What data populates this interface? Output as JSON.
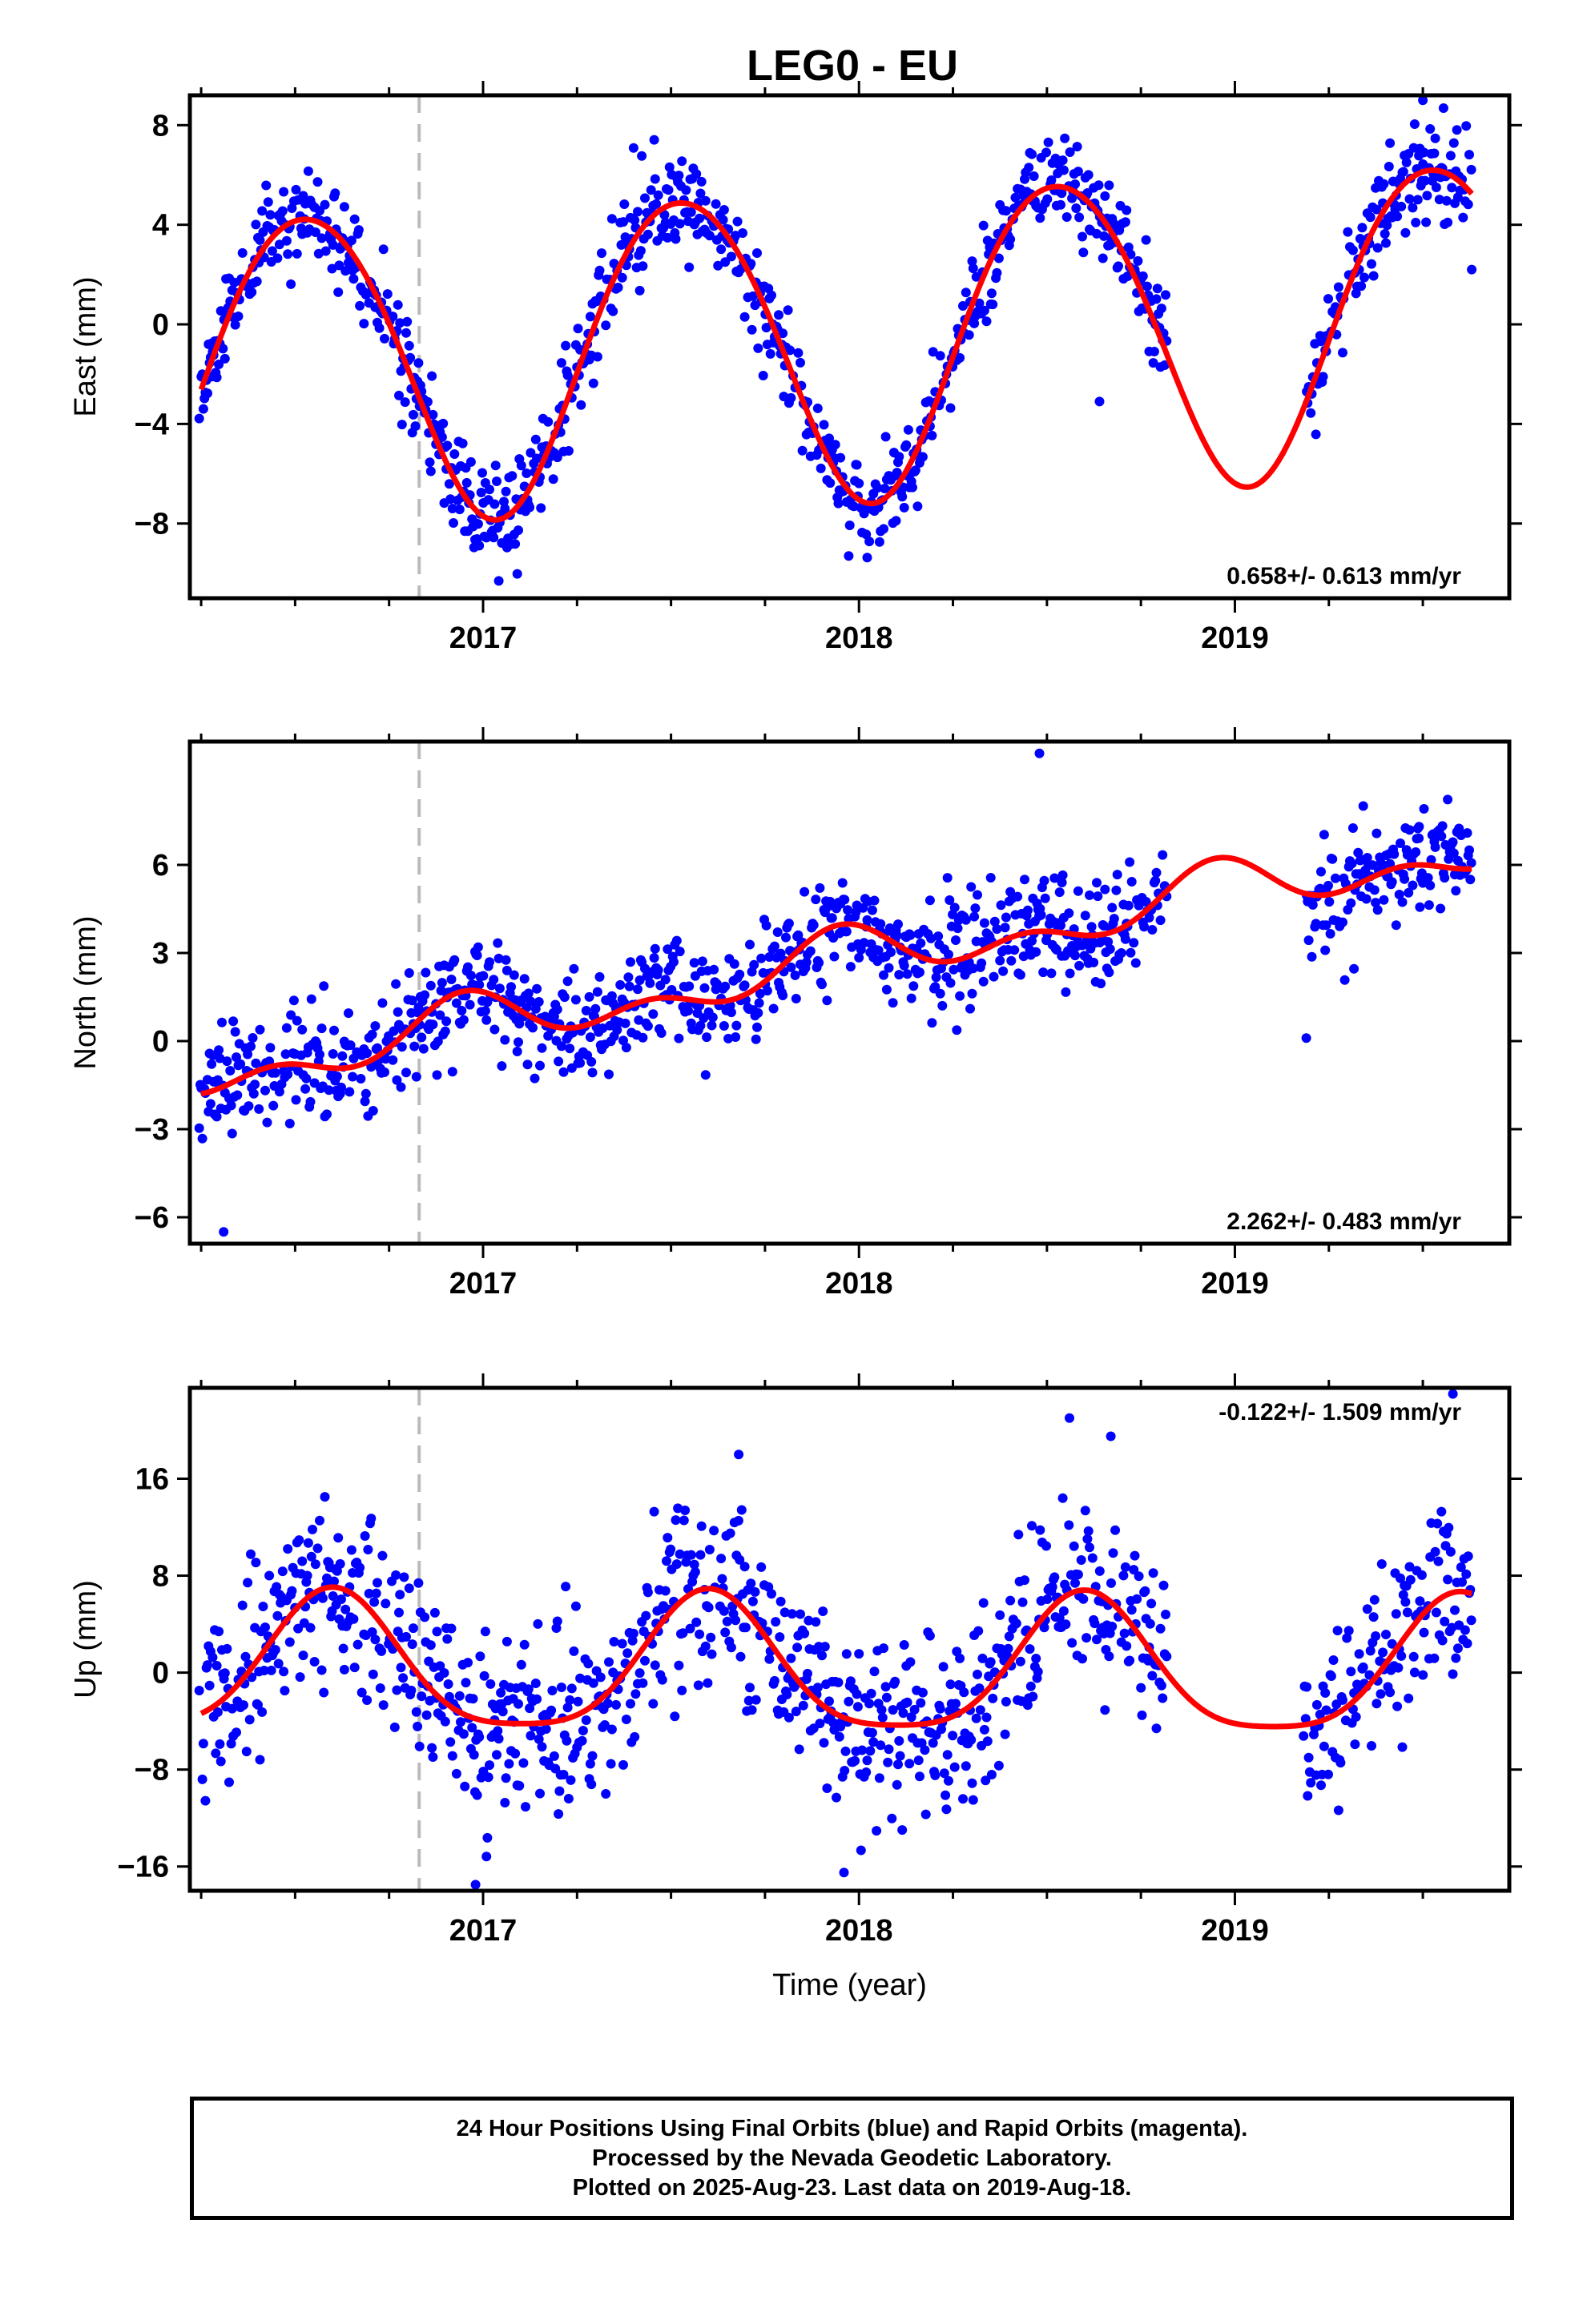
{
  "title": "LEG0 - EU",
  "colors": {
    "data": "#0000ff",
    "model": "#ff0000",
    "marker_line": "#bbbbbb"
  },
  "footer": {
    "line1": "24 Hour Positions Using Final Orbits (blue) and Rapid Orbits (magenta).",
    "line2": "Processed by the Nevada Geodetic Laboratory.",
    "line3": "Plotted on 2025-Aug-23. Last data on 2019-Aug-18."
  },
  "chart_data": [
    {
      "type": "scatter",
      "panel": "east",
      "ylabel": "East (mm)",
      "xlabel": "",
      "xlim": [
        2016.22,
        2019.73
      ],
      "ylim": [
        -11.0,
        9.2
      ],
      "xticks": [
        2017,
        2018,
        2019
      ],
      "yticks": [
        -8,
        -4,
        0,
        4,
        8
      ],
      "equipment_change": 2016.83,
      "rate_label": "0.658+/- 0.613 mm/yr",
      "rate_position": "bottom-right",
      "model": {
        "offset": -1.8,
        "rate": 0.658,
        "annual_amp": 6.2,
        "annual_peak": 0.53,
        "semi_amp": 0.4,
        "semi_peak": 0.3
      },
      "gaps": [
        [
          2018.82,
          2019.19
        ]
      ],
      "noise": 1.0,
      "seed": 11,
      "outliers": [
        {
          "x": 2016.28,
          "y": -2.1
        },
        {
          "x": 2018.64,
          "y": -3.1
        },
        {
          "x": 2019.63,
          "y": 2.2
        },
        {
          "x": 2019.5,
          "y": 9.0
        }
      ]
    },
    {
      "type": "scatter",
      "panel": "north",
      "ylabel": "North (mm)",
      "xlabel": "",
      "xlim": [
        2016.22,
        2019.73
      ],
      "ylim": [
        -6.9,
        10.2
      ],
      "xticks": [
        2017,
        2018,
        2019
      ],
      "yticks": [
        -6,
        -3,
        0,
        3,
        6
      ],
      "equipment_change": 2016.83,
      "rate_label": "2.262+/- 0.483 mm/yr",
      "rate_position": "bottom-right",
      "model": {
        "offset": -1.2,
        "rate": 2.262,
        "annual_amp": 0.7,
        "annual_peak": 0.95,
        "semi_amp": 0.55,
        "semi_peak": 0.45
      },
      "gaps": [
        [
          2018.82,
          2019.19
        ]
      ],
      "noise": 0.9,
      "seed": 23,
      "outliers": [
        {
          "x": 2018.48,
          "y": 9.8
        },
        {
          "x": 2016.31,
          "y": -6.5
        },
        {
          "x": 2018.54,
          "y": 5.4
        },
        {
          "x": 2019.19,
          "y": 0.1
        },
        {
          "x": 2019.49,
          "y": 7.3
        }
      ]
    },
    {
      "type": "scatter",
      "panel": "up",
      "ylabel": "Up (mm)",
      "xlabel": "Time (year)",
      "xlim": [
        2016.22,
        2019.73
      ],
      "ylim": [
        -18.0,
        23.5
      ],
      "xticks": [
        2017,
        2018,
        2019
      ],
      "yticks": [
        -16,
        -8,
        0,
        8,
        16
      ],
      "equipment_change": 2016.83,
      "rate_label": "-0.122+/- 1.509 mm/yr",
      "rate_position": "top-right",
      "model": {
        "offset": 0.3,
        "rate": -0.122,
        "annual_amp": 5.6,
        "annual_peak": 0.6,
        "semi_amp": 1.2,
        "semi_peak": 0.1
      },
      "gaps": [
        [
          2018.82,
          2019.18
        ]
      ],
      "noise": 3.6,
      "seed": 37,
      "outliers": [
        {
          "x": 2018.56,
          "y": 21.0
        },
        {
          "x": 2018.67,
          "y": 19.5
        },
        {
          "x": 2019.58,
          "y": 23.0
        },
        {
          "x": 2017.68,
          "y": 18.0
        },
        {
          "x": 2016.98,
          "y": -17.5
        },
        {
          "x": 2017.96,
          "y": -16.5
        }
      ]
    }
  ]
}
